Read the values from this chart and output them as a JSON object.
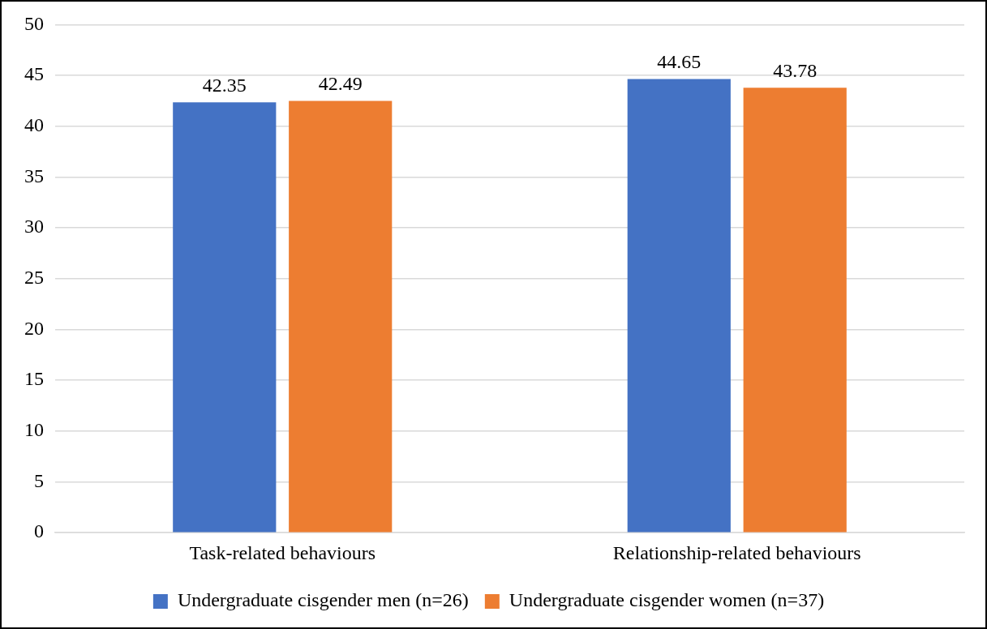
{
  "chart_data": {
    "type": "bar",
    "categories": [
      "Task-related behaviours",
      "Relationship-related behaviours"
    ],
    "series": [
      {
        "name": "Undergraduate cisgender men (n=26)",
        "color": "#4472c4",
        "values": [
          42.35,
          44.65
        ]
      },
      {
        "name": "Undergraduate cisgender women (n=37)",
        "color": "#ed7d31",
        "values": [
          42.49,
          43.78
        ]
      }
    ],
    "ylim": [
      0,
      50
    ],
    "yticks": [
      0,
      5,
      10,
      15,
      20,
      25,
      30,
      35,
      40,
      45,
      50
    ],
    "grid": "y",
    "legend": "bottom",
    "data_labels": true
  }
}
